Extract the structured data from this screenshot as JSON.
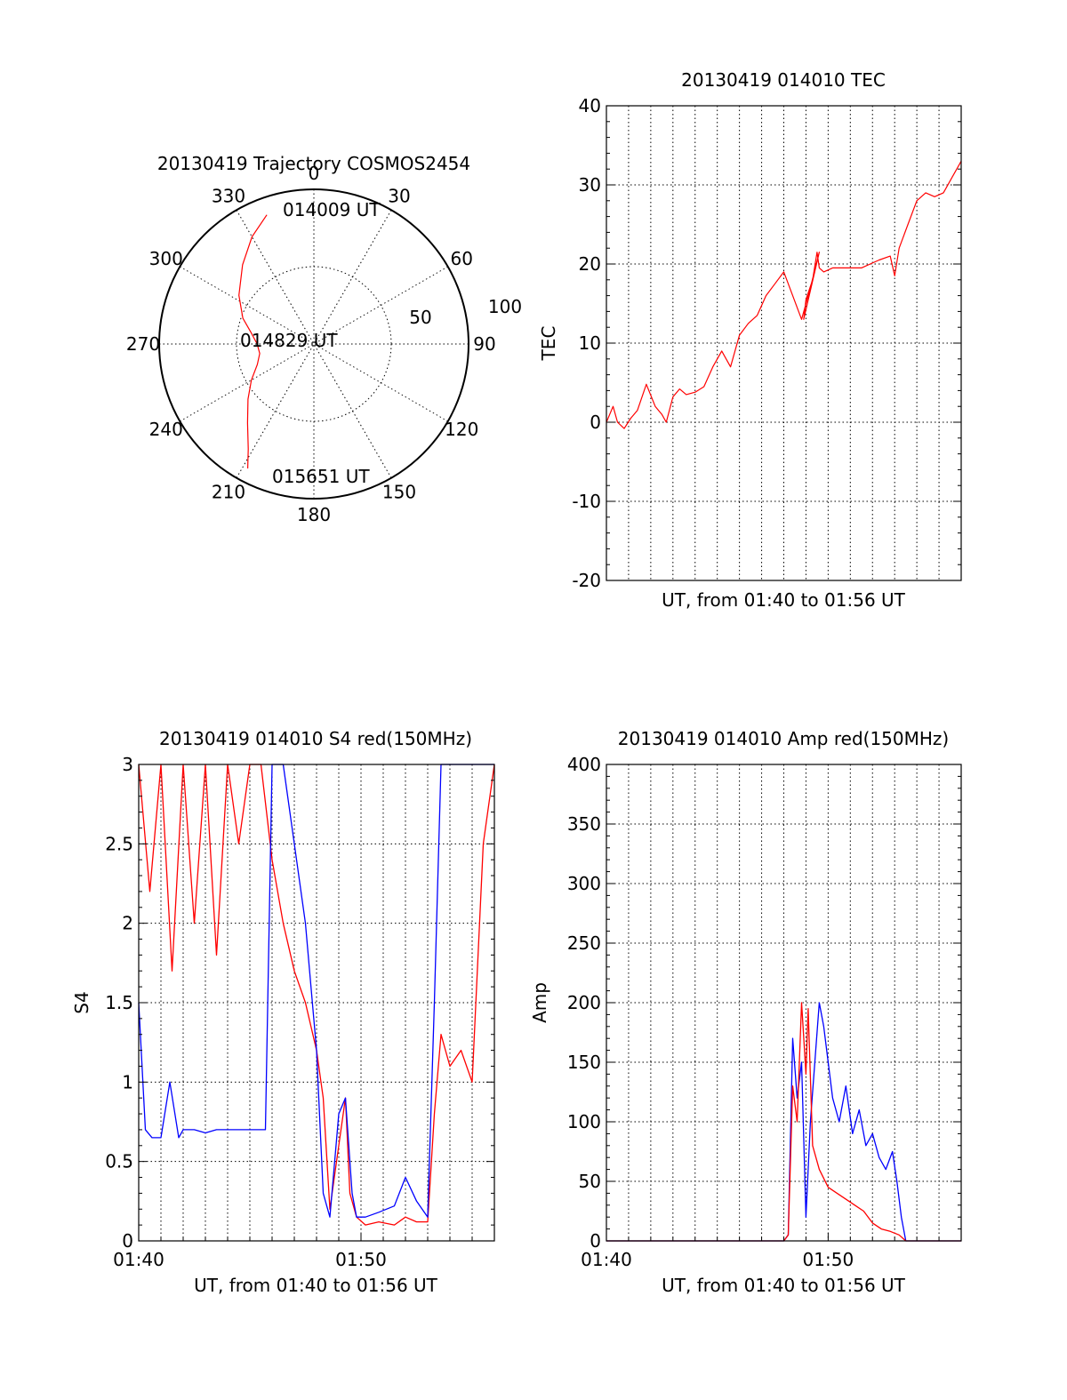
{
  "colors": {
    "red": "#ff0000",
    "blue": "#0000ff",
    "axis": "#000000"
  },
  "chart_data": [
    {
      "type": "polar",
      "title": "20130419 Trajectory COSMOS2454",
      "azimuth_labels": [
        "0",
        "30",
        "60",
        "90",
        "120",
        "150",
        "180",
        "210",
        "240",
        "270",
        "300",
        "330"
      ],
      "radial_labels": [
        "50",
        "100"
      ],
      "points": [
        {
          "label": "014009 UT",
          "azimuth": 340,
          "elevation": 10
        },
        {
          "label": "014829 UT",
          "azimuth": 270,
          "elevation": 61
        },
        {
          "label": "015651 UT",
          "azimuth": 208,
          "elevation": 8
        }
      ],
      "trajectory": {
        "series": "red",
        "az": [
          340,
          330,
          318,
          303,
          290,
          280,
          270,
          260,
          250,
          240,
          230,
          220,
          212,
          208
        ],
        "el": [
          10,
          18,
          28,
          38,
          46,
          53,
          57,
          58,
          55,
          48,
          40,
          30,
          18,
          8
        ]
      }
    },
    {
      "type": "line",
      "title": "20130419 014010 TEC",
      "xlabel": "UT, from 01:40 to 01:56 UT",
      "ylabel": "TEC",
      "xlim": [
        0,
        16
      ],
      "ylim": [
        -20,
        40
      ],
      "yticks": [
        "-20",
        "-10",
        "0",
        "10",
        "20",
        "30",
        "40"
      ],
      "series": [
        {
          "color": "red",
          "x": [
            0,
            0.3,
            0.5,
            0.8,
            1.1,
            1.4,
            1.8,
            2.2,
            2.5,
            2.7,
            3.0,
            3.3,
            3.6,
            4.0,
            4.4,
            4.8,
            5.2,
            5.6,
            6.0,
            6.4,
            6.8,
            7.2,
            7.6,
            8.0,
            8.4,
            8.8,
            9.2,
            9.6,
            8.9,
            9.0,
            9.3,
            9.5,
            9.6,
            9.8,
            10.2,
            10.8,
            11.5,
            12.3,
            12.8,
            13.0,
            13.2,
            13.6,
            14.0,
            14.4,
            14.8,
            15.2,
            15.6,
            16.0
          ],
          "y": [
            0,
            2,
            0,
            -0.8,
            0.5,
            1.5,
            4.8,
            2.0,
            1.0,
            0,
            3.2,
            4.2,
            3.5,
            3.8,
            4.5,
            7.0,
            9.0,
            7.0,
            11.0,
            12.5,
            13.5,
            16.0,
            17.5,
            19.0,
            16.0,
            13.0,
            17.0,
            21.5,
            13.0,
            15.5,
            18.0,
            21.5,
            19.5,
            19.0,
            19.5,
            19.5,
            19.5,
            20.5,
            21.0,
            18.5,
            22.0,
            25.0,
            28.0,
            29.0,
            28.5,
            29.0,
            31.0,
            33.0
          ]
        }
      ]
    },
    {
      "type": "line",
      "title": "20130419 014010 S4 red(150MHz)",
      "xlabel": "UT, from 01:40 to 01:56 UT",
      "ylabel": "S4",
      "xlim": [
        0,
        16
      ],
      "ylim": [
        0,
        3
      ],
      "xticks": [
        "01:40",
        "01:50"
      ],
      "yticks": [
        "0",
        "0.5",
        "1",
        "1.5",
        "2",
        "2.5",
        "3"
      ],
      "series": [
        {
          "color": "red",
          "x": [
            0,
            0.5,
            1.0,
            1.5,
            2.0,
            2.5,
            3.0,
            3.5,
            4.0,
            4.5,
            5.0,
            5.5,
            6.0,
            6.5,
            7.0,
            7.5,
            8.0,
            8.3,
            8.6,
            9.0,
            9.3,
            9.5,
            9.8,
            10.2,
            10.8,
            11.5,
            12.0,
            12.5,
            13.0,
            13.3,
            13.6,
            14.0,
            14.5,
            15.0,
            15.5,
            16.0
          ],
          "y": [
            3.0,
            2.2,
            3.0,
            1.7,
            3.0,
            2.0,
            3.0,
            1.8,
            3.0,
            2.5,
            3.0,
            3.0,
            2.4,
            2.0,
            1.7,
            1.5,
            1.2,
            0.9,
            0.2,
            0.6,
            0.9,
            0.3,
            0.15,
            0.1,
            0.12,
            0.1,
            0.15,
            0.12,
            0.12,
            0.8,
            1.3,
            1.1,
            1.2,
            1.0,
            2.5,
            3.0
          ]
        },
        {
          "color": "blue",
          "x": [
            0,
            0.3,
            0.6,
            1.0,
            1.4,
            1.8,
            2.0,
            2.5,
            3.0,
            3.5,
            4.0,
            4.5,
            5.0,
            5.5,
            5.7,
            6.0,
            6.5,
            7.0,
            7.5,
            8.0,
            8.3,
            8.6,
            9.0,
            9.3,
            9.6,
            9.8,
            10.2,
            10.8,
            11.5,
            12.0,
            12.5,
            13.0,
            13.3,
            13.6,
            14.0,
            14.5,
            15.0,
            15.5,
            16.0
          ],
          "y": [
            1.5,
            0.7,
            0.65,
            0.65,
            1.0,
            0.65,
            0.7,
            0.7,
            0.68,
            0.7,
            0.7,
            0.7,
            0.7,
            0.7,
            0.7,
            3.0,
            3.0,
            2.5,
            2.0,
            1.2,
            0.3,
            0.15,
            0.8,
            0.9,
            0.3,
            0.15,
            0.15,
            0.18,
            0.22,
            0.4,
            0.25,
            0.15,
            1.5,
            3.0,
            3.0,
            3.0,
            3.0,
            3.0,
            3.0
          ]
        }
      ]
    },
    {
      "type": "line",
      "title": "20130419 014010 Amp red(150MHz)",
      "xlabel": "UT, from 01:40 to 01:56 UT",
      "ylabel": "Amp",
      "xlim": [
        0,
        16
      ],
      "ylim": [
        0,
        400
      ],
      "xticks": [
        "01:40",
        "01:50"
      ],
      "yticks": [
        "0",
        "50",
        "100",
        "150",
        "200",
        "250",
        "300",
        "350",
        "400"
      ],
      "series": [
        {
          "color": "blue",
          "x": [
            0,
            8.0,
            8.2,
            8.4,
            8.6,
            8.8,
            9.0,
            9.2,
            9.4,
            9.6,
            9.8,
            10.0,
            10.2,
            10.5,
            10.8,
            11.1,
            11.4,
            11.7,
            12.0,
            12.3,
            12.6,
            12.9,
            13.1,
            13.3,
            13.5,
            16.0
          ],
          "y": [
            0,
            0,
            5,
            170,
            120,
            150,
            20,
            100,
            150,
            200,
            180,
            150,
            120,
            100,
            130,
            90,
            110,
            80,
            90,
            70,
            60,
            75,
            50,
            20,
            0,
            0
          ]
        },
        {
          "color": "red",
          "x": [
            0,
            8.0,
            8.2,
            8.4,
            8.6,
            8.8,
            9.0,
            9.1,
            9.3,
            9.6,
            10.0,
            10.4,
            10.8,
            11.2,
            11.6,
            12.0,
            12.4,
            12.8,
            13.2,
            13.5,
            16.0
          ],
          "y": [
            0,
            0,
            5,
            130,
            100,
            200,
            140,
            195,
            80,
            60,
            45,
            40,
            35,
            30,
            25,
            15,
            10,
            8,
            5,
            0,
            0
          ]
        }
      ]
    }
  ]
}
